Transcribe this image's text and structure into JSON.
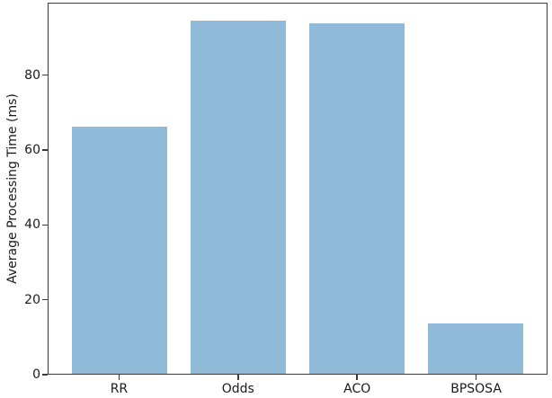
{
  "figure": {
    "background": "#ffffff"
  },
  "chart_data": {
    "type": "bar",
    "title": "",
    "xlabel": "",
    "ylabel": "Average Processing Time (ms)",
    "categories": [
      "RR",
      "Odds",
      "ACO",
      "BPSOSA"
    ],
    "values": [
      66.4,
      94.7,
      94.2,
      13.5
    ],
    "yticks": [
      0,
      20,
      40,
      60,
      80
    ],
    "ylim": [
      0,
      99.4
    ],
    "xlim": [
      -0.6,
      3.6
    ],
    "bar_width": 0.8,
    "bar_color": "#8fbbd9",
    "spine_color": "#3a3a3a",
    "tick_color": "#1a1a1a",
    "grid": false,
    "legend": null
  }
}
